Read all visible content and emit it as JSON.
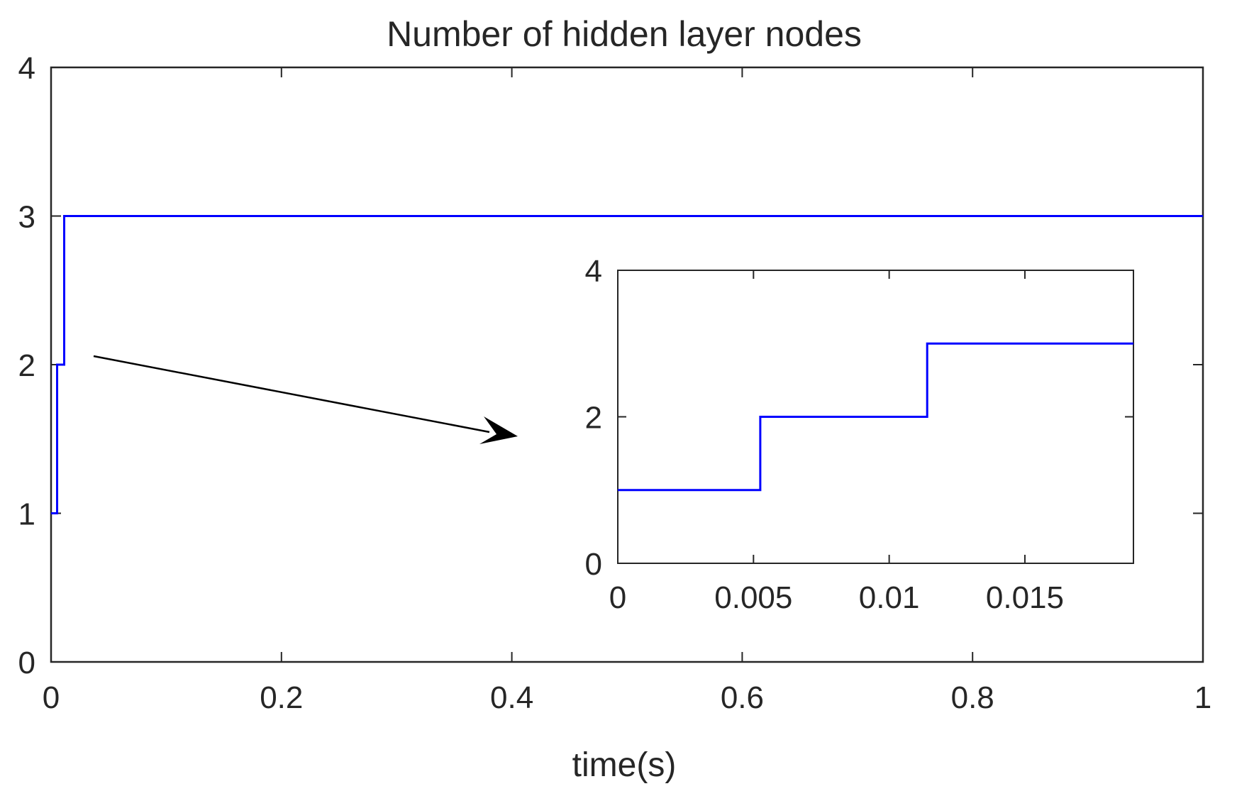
{
  "chart_data": [
    {
      "id": "main",
      "type": "line",
      "title": "Number of hidden layer nodes",
      "xlabel": "time(s)",
      "ylabel": "",
      "xlim": [
        0,
        1
      ],
      "ylim": [
        0,
        4
      ],
      "xticks": [
        0,
        0.2,
        0.4,
        0.6,
        0.8,
        1
      ],
      "xtick_labels": [
        "0",
        "0.2",
        "0.4",
        "0.6",
        "0.8",
        "1"
      ],
      "yticks": [
        0,
        1,
        2,
        3,
        4
      ],
      "ytick_labels": [
        "0",
        "1",
        "2",
        "3",
        "4"
      ],
      "grid": false,
      "step": "post",
      "series": [
        {
          "color": "#0000ff",
          "x": [
            0,
            0.00525,
            0.0114,
            1
          ],
          "y": [
            1,
            2,
            3,
            3
          ]
        }
      ]
    },
    {
      "id": "inset",
      "type": "line",
      "title": "",
      "xlabel": "",
      "ylabel": "",
      "xlim": [
        0,
        0.019
      ],
      "ylim": [
        0,
        4
      ],
      "xticks": [
        0,
        0.005,
        0.01,
        0.015
      ],
      "xtick_labels": [
        "0",
        "0.005",
        "0.01",
        "0.015"
      ],
      "yticks": [
        0,
        2,
        4
      ],
      "ytick_labels": [
        "0",
        "2",
        "4"
      ],
      "grid": false,
      "step": "post",
      "series": [
        {
          "color": "#0000ff",
          "x": [
            0,
            0.00525,
            0.0114,
            0.019
          ],
          "y": [
            1,
            2,
            3,
            3
          ]
        }
      ]
    }
  ],
  "colors": {
    "axis": "#262626",
    "line": "#0000ff",
    "arrow": "#000000"
  }
}
